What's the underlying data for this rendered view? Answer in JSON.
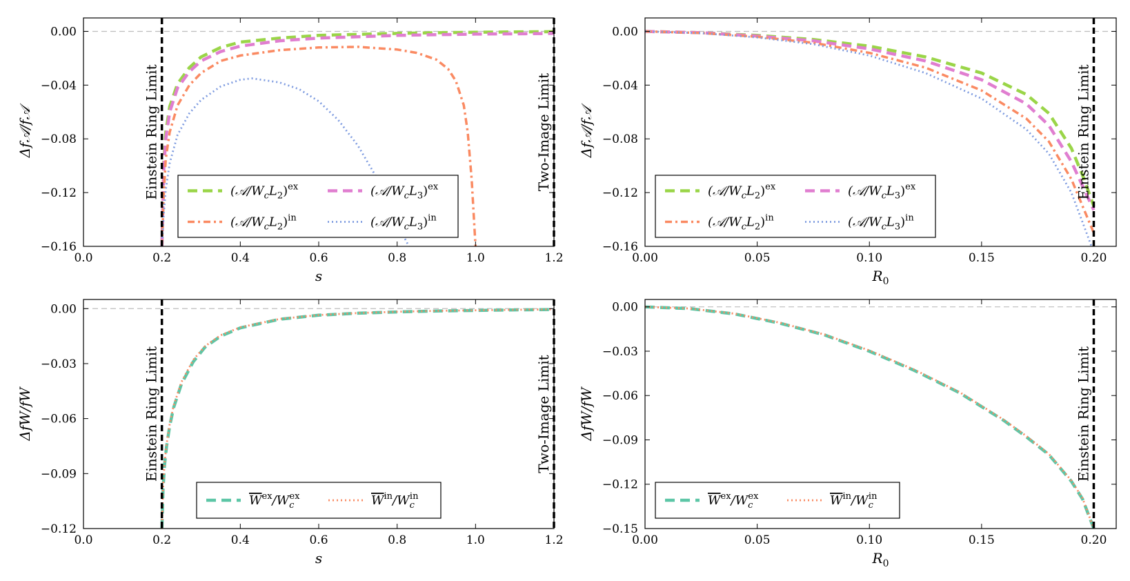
{
  "figure": "2x2 panel figure of relative amplitude/width corrections",
  "chart_data": [
    {
      "id": "top-left",
      "type": "line",
      "xlabel": "s",
      "ylabel": "Δf𝒜/f𝒜",
      "xlim": [
        0.0,
        1.2
      ],
      "ylim": [
        -0.16,
        0.01
      ],
      "xticks": [
        "0.0",
        "0.2",
        "0.4",
        "0.6",
        "0.8",
        "1.0",
        "1.2"
      ],
      "yticks": [
        "0.00",
        "−0.04",
        "−0.08",
        "−0.12",
        "−0.16"
      ],
      "ytick_values": [
        0.0,
        -0.04,
        -0.08,
        -0.12,
        -0.16
      ],
      "xtick_values": [
        0.0,
        0.2,
        0.4,
        0.6,
        0.8,
        1.0,
        1.2
      ],
      "reference_line": 0.0,
      "vlines": [
        {
          "x": 0.2,
          "label": "Einstein Ring Limit"
        },
        {
          "x": 1.2,
          "label": "Two-Image Limit"
        }
      ],
      "legend": {
        "placement": "lower-center",
        "ncol": 2
      },
      "series": [
        {
          "name": "(𝒜/WcL2)ex",
          "label_main": "(𝒜/W",
          "label_sub1": "c",
          "label_mid": "L",
          "label_sub2": "2",
          "label_end": ")",
          "label_sup": "ex",
          "color": "#9ad548",
          "style": "dashed",
          "x": [
            0.2,
            0.205,
            0.21,
            0.22,
            0.24,
            0.27,
            0.3,
            0.35,
            0.4,
            0.5,
            0.6,
            0.7,
            0.8,
            0.9,
            1.0,
            1.1,
            1.2
          ],
          "y": [
            -0.16,
            -0.097,
            -0.075,
            -0.056,
            -0.039,
            -0.027,
            -0.019,
            -0.012,
            -0.008,
            -0.005,
            -0.003,
            -0.0022,
            -0.0015,
            -0.001,
            -0.0007,
            -0.0004,
            -0.0002
          ]
        },
        {
          "name": "(𝒜/WcL3)ex",
          "label_main": "(𝒜/W",
          "label_sub1": "c",
          "label_mid": "L",
          "label_sub2": "3",
          "label_end": ")",
          "label_sup": "ex",
          "color": "#e07ed0",
          "style": "dashed",
          "x": [
            0.2,
            0.205,
            0.21,
            0.22,
            0.24,
            0.27,
            0.3,
            0.35,
            0.4,
            0.5,
            0.6,
            0.7,
            0.8,
            0.9,
            1.0,
            1.1,
            1.2
          ],
          "y": [
            -0.16,
            -0.102,
            -0.08,
            -0.06,
            -0.042,
            -0.03,
            -0.022,
            -0.015,
            -0.011,
            -0.007,
            -0.005,
            -0.004,
            -0.003,
            -0.0025,
            -0.002,
            -0.0018,
            -0.0015
          ]
        },
        {
          "name": "(𝒜/WcL2)in",
          "label_main": "(𝒜/W",
          "label_sub1": "c",
          "label_mid": "L",
          "label_sub2": "2",
          "label_end": ")",
          "label_sup": "in",
          "color": "#fa8a62",
          "style": "dashdot",
          "x": [
            0.2,
            0.205,
            0.21,
            0.22,
            0.24,
            0.27,
            0.3,
            0.35,
            0.4,
            0.5,
            0.6,
            0.7,
            0.8,
            0.85,
            0.9,
            0.93,
            0.95,
            0.97,
            0.98,
            0.99,
            1.0
          ],
          "y": [
            -0.16,
            -0.12,
            -0.095,
            -0.075,
            -0.055,
            -0.04,
            -0.031,
            -0.022,
            -0.018,
            -0.014,
            -0.012,
            -0.0115,
            -0.0135,
            -0.016,
            -0.021,
            -0.028,
            -0.037,
            -0.055,
            -0.075,
            -0.11,
            -0.16
          ]
        },
        {
          "name": "(𝒜/WcL3)in",
          "label_main": "(𝒜/W",
          "label_sub1": "c",
          "label_mid": "L",
          "label_sub2": "3",
          "label_end": ")",
          "label_sup": "in",
          "color": "#7f9ce0",
          "style": "dotted",
          "x": [
            0.2,
            0.205,
            0.21,
            0.22,
            0.24,
            0.27,
            0.3,
            0.35,
            0.4,
            0.43,
            0.5,
            0.55,
            0.6,
            0.65,
            0.7,
            0.75,
            0.8,
            0.83
          ],
          "y": [
            -0.16,
            -0.135,
            -0.118,
            -0.098,
            -0.077,
            -0.061,
            -0.051,
            -0.041,
            -0.036,
            -0.035,
            -0.038,
            -0.043,
            -0.052,
            -0.066,
            -0.085,
            -0.11,
            -0.143,
            -0.16
          ]
        }
      ]
    },
    {
      "id": "top-right",
      "type": "line",
      "xlabel": "R0",
      "xlabel_main": "R",
      "xlabel_sub": "0",
      "ylabel": "Δf𝒜/f𝒜",
      "xlim": [
        0.0,
        0.21
      ],
      "ylim": [
        -0.16,
        0.01
      ],
      "xticks": [
        "0.00",
        "0.05",
        "0.10",
        "0.15",
        "0.20"
      ],
      "xtick_values": [
        0.0,
        0.05,
        0.1,
        0.15,
        0.2
      ],
      "yticks": [
        "0.00",
        "−0.04",
        "−0.08",
        "−0.12",
        "−0.16"
      ],
      "ytick_values": [
        0.0,
        -0.04,
        -0.08,
        -0.12,
        -0.16
      ],
      "reference_line": 0.0,
      "vlines": [
        {
          "x": 0.2,
          "label": "Einstein Ring Limit"
        }
      ],
      "legend": {
        "placement": "lower-left",
        "ncol": 2
      },
      "series": [
        {
          "name": "(𝒜/WcL2)ex",
          "label_main": "(𝒜/W",
          "label_sub1": "c",
          "label_mid": "L",
          "label_sub2": "2",
          "label_end": ")",
          "label_sup": "ex",
          "color": "#9ad548",
          "style": "dashed",
          "x": [
            0.0,
            0.025,
            0.05,
            0.075,
            0.1,
            0.125,
            0.15,
            0.17,
            0.18,
            0.19,
            0.195,
            0.2
          ],
          "y": [
            0.0,
            -0.001,
            -0.003,
            -0.006,
            -0.011,
            -0.019,
            -0.031,
            -0.047,
            -0.061,
            -0.087,
            -0.107,
            -0.13
          ]
        },
        {
          "name": "(𝒜/WcL3)ex",
          "label_main": "(𝒜/W",
          "label_sub1": "c",
          "label_mid": "L",
          "label_sub2": "3",
          "label_end": ")",
          "label_sup": "ex",
          "color": "#e07ed0",
          "style": "dashed",
          "x": [
            0.0,
            0.025,
            0.05,
            0.075,
            0.1,
            0.125,
            0.15,
            0.17,
            0.18,
            0.19,
            0.195,
            0.2
          ],
          "y": [
            0.0,
            -0.001,
            -0.0035,
            -0.007,
            -0.013,
            -0.022,
            -0.036,
            -0.054,
            -0.07,
            -0.097,
            -0.115,
            -0.133
          ]
        },
        {
          "name": "(𝒜/WcL2)in",
          "label_main": "(𝒜/W",
          "label_sub1": "c",
          "label_mid": "L",
          "label_sub2": "2",
          "label_end": ")",
          "label_sup": "in",
          "color": "#fa8a62",
          "style": "dashdot",
          "x": [
            0.0,
            0.025,
            0.05,
            0.075,
            0.1,
            0.125,
            0.15,
            0.17,
            0.18,
            0.19,
            0.195,
            0.2
          ],
          "y": [
            0.0,
            -0.0012,
            -0.004,
            -0.0085,
            -0.016,
            -0.027,
            -0.044,
            -0.065,
            -0.082,
            -0.11,
            -0.13,
            -0.15
          ]
        },
        {
          "name": "(𝒜/WcL3)in",
          "label_main": "(𝒜/W",
          "label_sub1": "c",
          "label_mid": "L",
          "label_sub2": "3",
          "label_end": ")",
          "label_sup": "in",
          "color": "#7f9ce0",
          "style": "dotted",
          "x": [
            0.0,
            0.025,
            0.05,
            0.075,
            0.1,
            0.125,
            0.15,
            0.17,
            0.18,
            0.19,
            0.195,
            0.199
          ],
          "y": [
            0.0,
            -0.0013,
            -0.0045,
            -0.0095,
            -0.018,
            -0.031,
            -0.05,
            -0.073,
            -0.091,
            -0.12,
            -0.142,
            -0.16
          ]
        }
      ]
    },
    {
      "id": "bottom-left",
      "type": "line",
      "xlabel": "s",
      "ylabel": "ΔfW/fW",
      "xlim": [
        0.0,
        1.2
      ],
      "ylim": [
        -0.12,
        0.005
      ],
      "xticks": [
        "0.0",
        "0.2",
        "0.4",
        "0.6",
        "0.8",
        "1.0",
        "1.2"
      ],
      "xtick_values": [
        0.0,
        0.2,
        0.4,
        0.6,
        0.8,
        1.0,
        1.2
      ],
      "yticks": [
        "0.00",
        "−0.03",
        "−0.06",
        "−0.09",
        "−0.12"
      ],
      "ytick_values": [
        0.0,
        -0.03,
        -0.06,
        -0.09,
        -0.12
      ],
      "reference_line": 0.0,
      "vlines": [
        {
          "x": 0.2,
          "label": "Einstein Ring Limit"
        },
        {
          "x": 1.2,
          "label": "Two-Image Limit"
        }
      ],
      "legend": {
        "placement": "lower-center",
        "ncol": 2
      },
      "series": [
        {
          "name": "W̄ex/Wcex",
          "label_main": "W",
          "label_sup": "ex",
          "label_mid": "/W",
          "label_sub1": "c",
          "label_sup2": "ex",
          "color": "#5cc6a6",
          "style": "dashed",
          "x": [
            0.2,
            0.203,
            0.207,
            0.212,
            0.22,
            0.23,
            0.25,
            0.28,
            0.31,
            0.35,
            0.4,
            0.5,
            0.6,
            0.7,
            0.8,
            0.9,
            1.0,
            1.1,
            1.2
          ],
          "y": [
            -0.12,
            -0.098,
            -0.085,
            -0.075,
            -0.064,
            -0.054,
            -0.041,
            -0.029,
            -0.021,
            -0.015,
            -0.0105,
            -0.0058,
            -0.0036,
            -0.0025,
            -0.0018,
            -0.0013,
            -0.001,
            -0.0007,
            -0.0005
          ]
        },
        {
          "name": "W̄in/Wcin",
          "label_main": "W",
          "label_sup": "in",
          "label_mid": "/W",
          "label_sub1": "c",
          "label_sup2": "in",
          "color": "#fa8a62",
          "style": "dotted",
          "x": [
            0.2,
            0.203,
            0.207,
            0.212,
            0.22,
            0.23,
            0.25,
            0.28,
            0.31,
            0.35,
            0.4,
            0.5,
            0.6,
            0.7,
            0.8,
            0.9,
            1.0,
            1.1,
            1.2
          ],
          "y": [
            -0.12,
            -0.097,
            -0.084,
            -0.074,
            -0.063,
            -0.053,
            -0.04,
            -0.028,
            -0.0205,
            -0.0145,
            -0.0102,
            -0.0056,
            -0.0035,
            -0.0024,
            -0.0017,
            -0.0012,
            -0.0009,
            -0.0006,
            -0.0004
          ]
        }
      ]
    },
    {
      "id": "bottom-right",
      "type": "line",
      "xlabel": "R0",
      "xlabel_main": "R",
      "xlabel_sub": "0",
      "ylabel": "ΔfW/fW",
      "xlim": [
        0.0,
        0.21
      ],
      "ylim": [
        -0.15,
        0.005
      ],
      "xticks": [
        "0.00",
        "0.05",
        "0.10",
        "0.15",
        "0.20"
      ],
      "xtick_values": [
        0.0,
        0.05,
        0.1,
        0.15,
        0.2
      ],
      "yticks": [
        "0.00",
        "−0.03",
        "−0.06",
        "−0.09",
        "−0.12",
        "−0.15"
      ],
      "ytick_values": [
        0.0,
        -0.03,
        -0.06,
        -0.09,
        -0.12,
        -0.15
      ],
      "reference_line": 0.0,
      "vlines": [
        {
          "x": 0.2,
          "label": "Einstein Ring Limit"
        }
      ],
      "legend": {
        "placement": "lower-left",
        "ncol": 2
      },
      "series": [
        {
          "name": "W̄ex/Wcex",
          "label_main": "W",
          "label_sup": "ex",
          "label_mid": "/W",
          "label_sub1": "c",
          "label_sup2": "ex",
          "color": "#5cc6a6",
          "style": "dashed",
          "x": [
            0.0,
            0.02,
            0.04,
            0.06,
            0.08,
            0.1,
            0.12,
            0.14,
            0.16,
            0.17,
            0.18,
            0.19,
            0.195,
            0.2
          ],
          "y": [
            0.0,
            -0.0012,
            -0.0048,
            -0.011,
            -0.019,
            -0.03,
            -0.043,
            -0.058,
            -0.077,
            -0.088,
            -0.1,
            -0.118,
            -0.13,
            -0.15
          ]
        },
        {
          "name": "W̄in/Wcin",
          "label_main": "W",
          "label_sup": "in",
          "label_mid": "/W",
          "label_sub1": "c",
          "label_sup2": "in",
          "color": "#fa8a62",
          "style": "dotted",
          "x": [
            0.0,
            0.02,
            0.04,
            0.06,
            0.08,
            0.1,
            0.12,
            0.14,
            0.16,
            0.17,
            0.18,
            0.19,
            0.195,
            0.2
          ],
          "y": [
            0.0,
            -0.0011,
            -0.0046,
            -0.0107,
            -0.0187,
            -0.0295,
            -0.0425,
            -0.0575,
            -0.0765,
            -0.0875,
            -0.0995,
            -0.1175,
            -0.1295,
            -0.15
          ]
        }
      ]
    }
  ]
}
